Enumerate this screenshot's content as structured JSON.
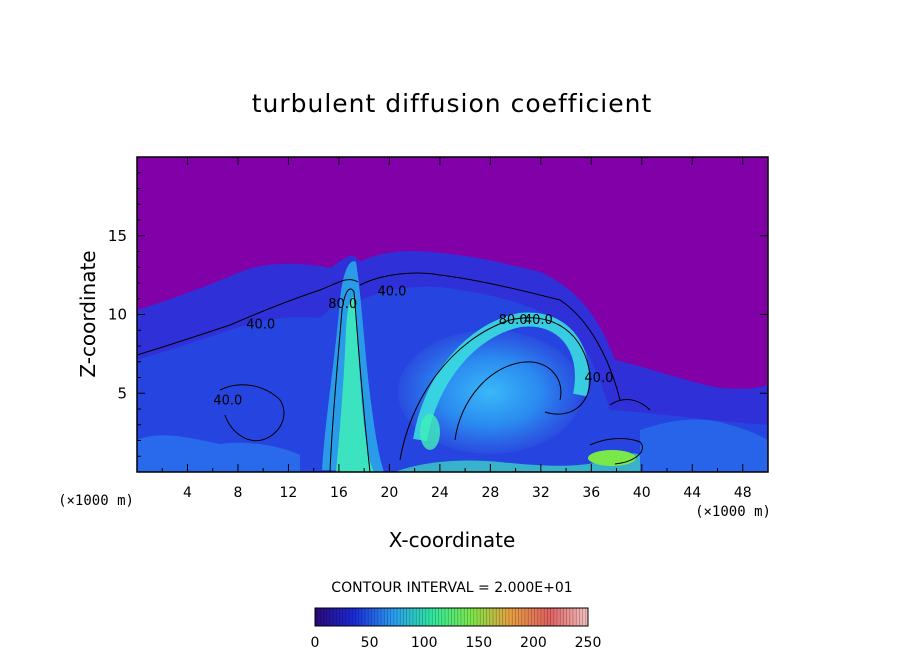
{
  "chart_data": {
    "type": "heatmap",
    "title": "turbulent diffusion coefficient",
    "xlabel": "X-coordinate",
    "ylabel": "Z-coordinate",
    "x_unit": "(×1000 m)",
    "z_unit": "(×1000 m)",
    "xlim": [
      0,
      50
    ],
    "zlim": [
      0,
      20
    ],
    "x_ticks": [
      4,
      8,
      12,
      16,
      20,
      24,
      28,
      32,
      36,
      40,
      44,
      48
    ],
    "z_ticks": [
      5,
      10,
      15
    ],
    "contour_interval_text": "CONTOUR INTERVAL = 2.000E+01",
    "contour_labels": [
      {
        "text": "40.0",
        "x": 9.8,
        "z": 9.1
      },
      {
        "text": "40.0",
        "x": 20.2,
        "z": 11.2
      },
      {
        "text": "80.0",
        "x": 16.3,
        "z": 10.4
      },
      {
        "text": "80.0",
        "x": 29.8,
        "z": 9.4
      },
      {
        "text": "40.0",
        "x": 31.8,
        "z": 9.4
      },
      {
        "text": "40.0",
        "x": 7.2,
        "z": 4.3
      },
      {
        "text": "40.0",
        "x": 36.6,
        "z": 5.7
      }
    ],
    "colorbar": {
      "ticks": [
        0,
        50,
        100,
        150,
        200,
        250
      ],
      "range": [
        0,
        250
      ],
      "colors": [
        "#2a0a78",
        "#1a2ad8",
        "#2a9bf0",
        "#30e8a0",
        "#7be84a",
        "#e8a040",
        "#e06060",
        "#f2c0c0"
      ]
    },
    "colors": {
      "background_field": "#8200a8",
      "low": "#3a2ad8",
      "mid": "#2a7af0",
      "high": "#40f0b8",
      "peak": "#7be84a"
    }
  }
}
